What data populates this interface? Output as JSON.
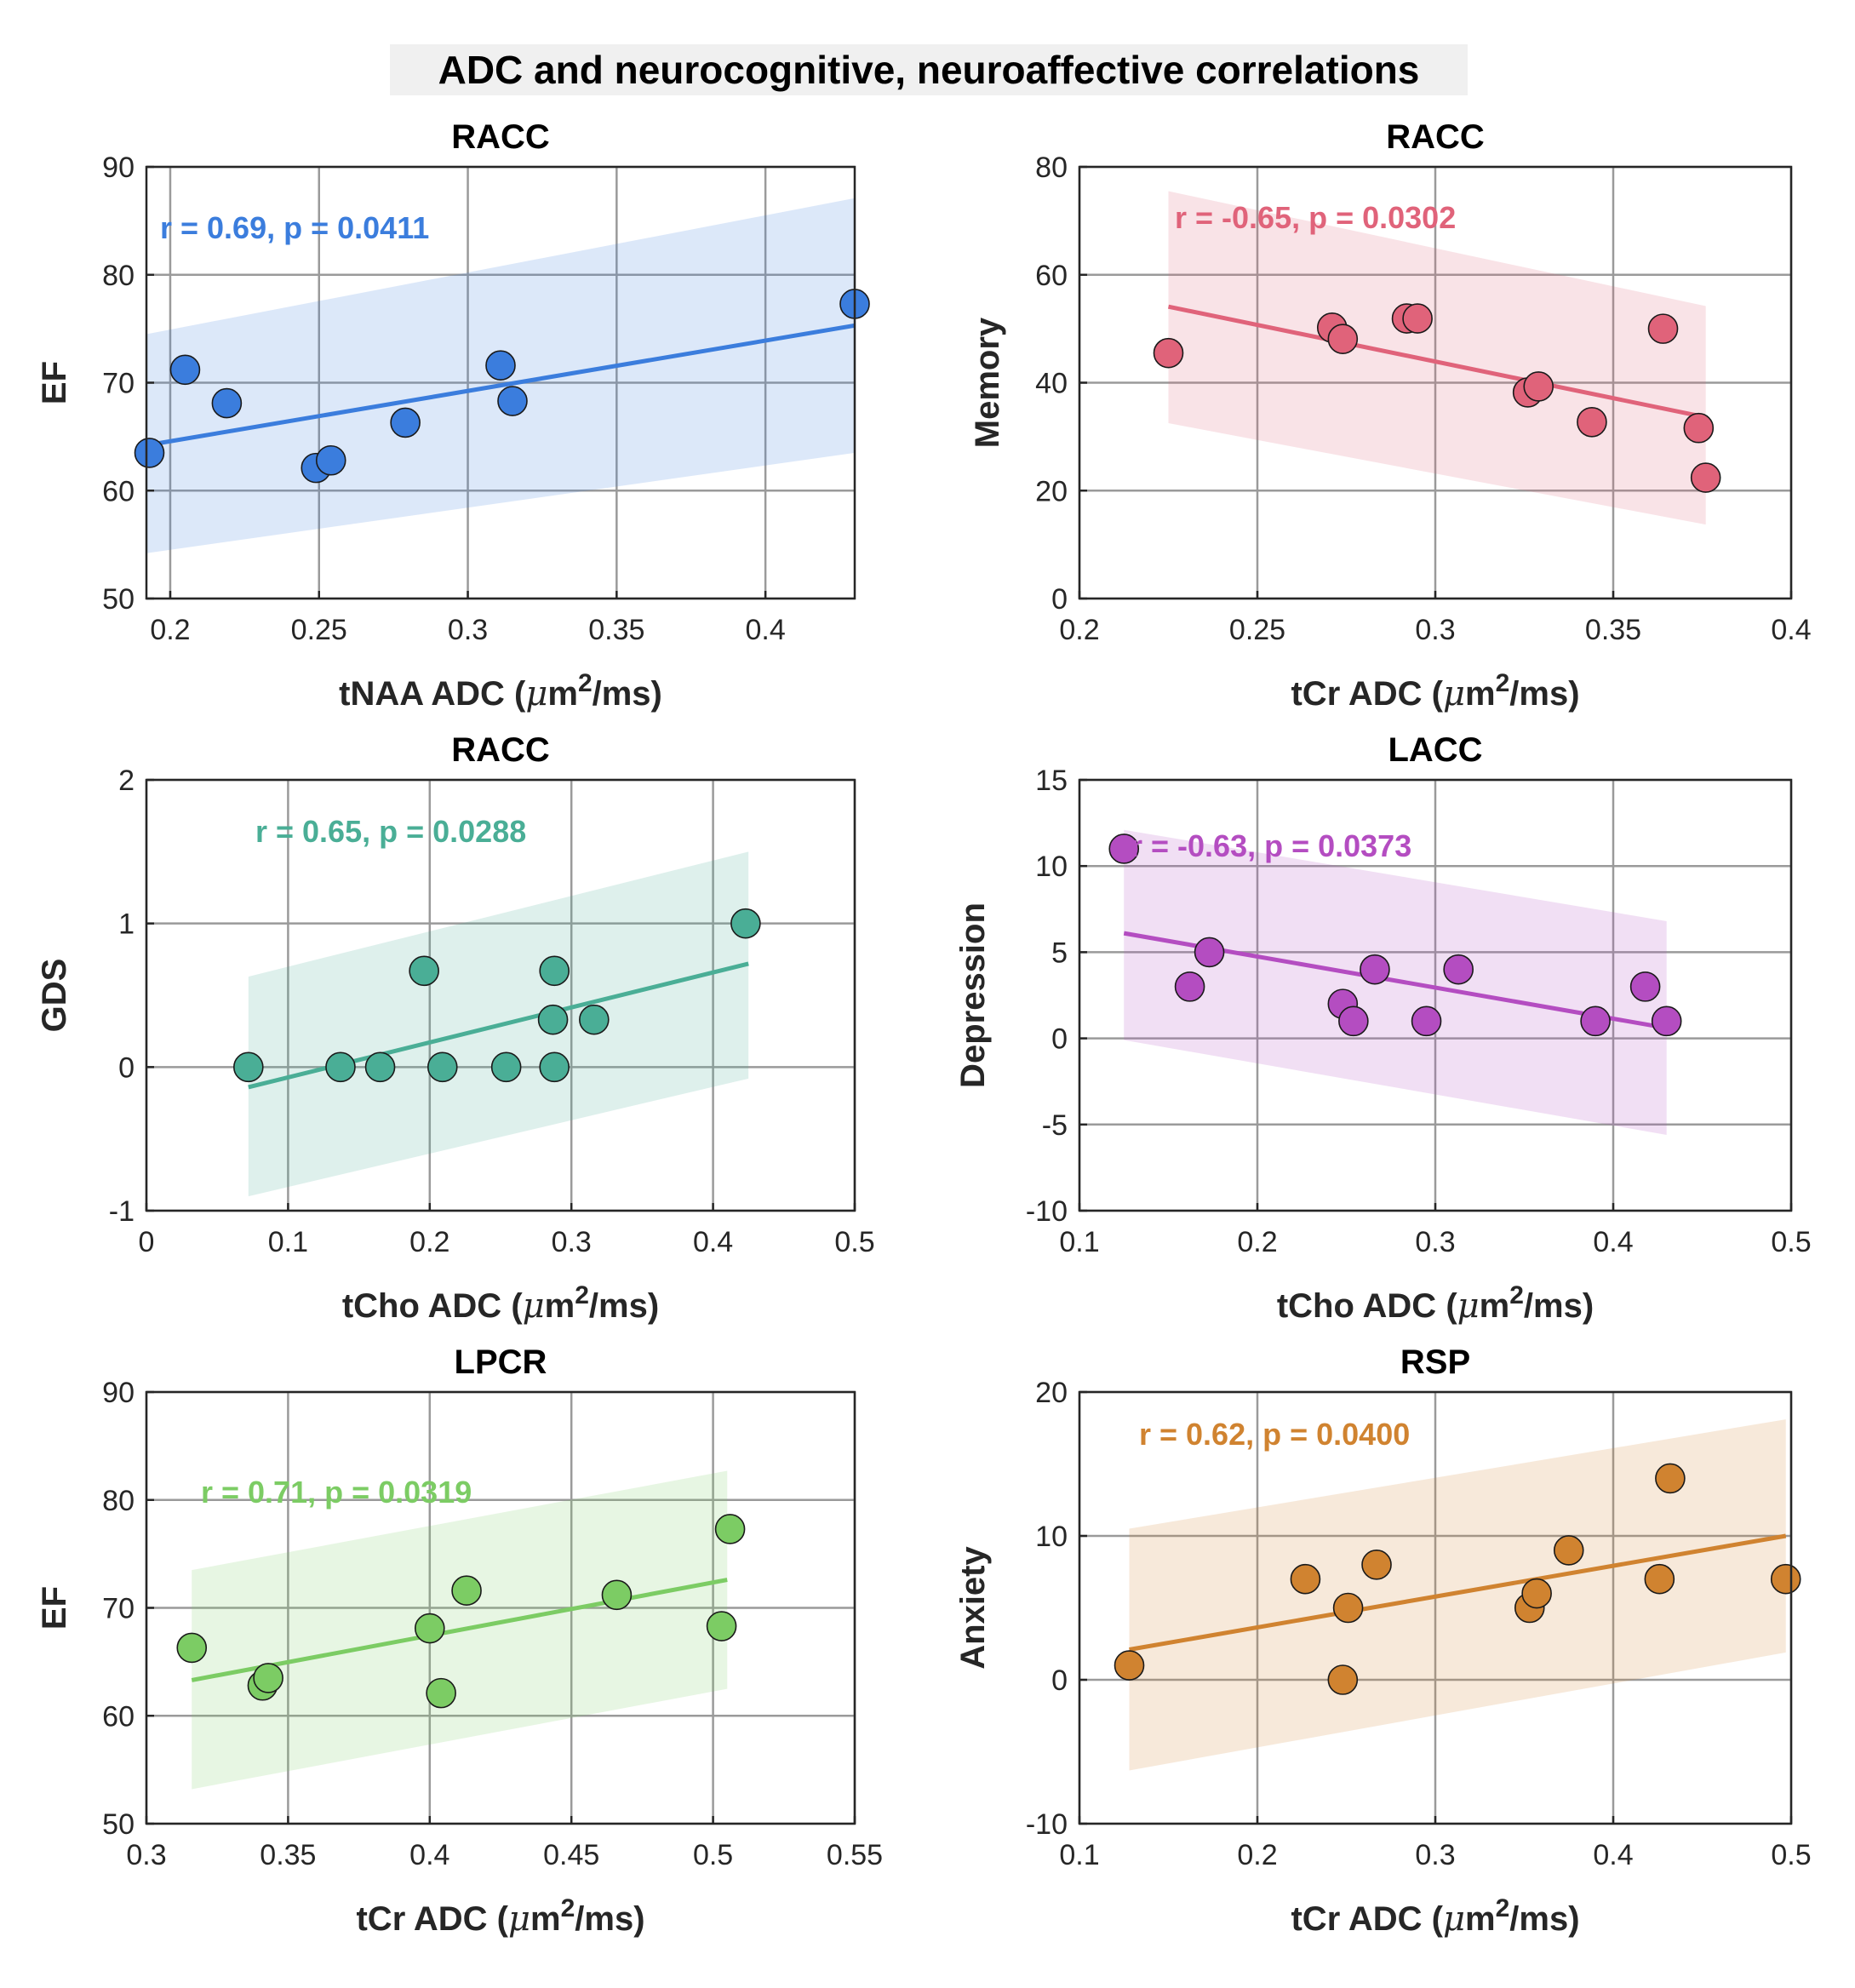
{
  "title": "ADC and neurocognitive, neuroaffective correlations",
  "chart_data": [
    {
      "type": "scatter",
      "title": "RACC",
      "xlabel": "tNAA ADC",
      "ylabel": "EF",
      "color": "#3b7ddd",
      "annotation": "r = 0.69, p = 0.0411",
      "xlim": [
        0.192,
        0.43
      ],
      "ylim": [
        50,
        90
      ],
      "xticks": [
        0.2,
        0.25,
        0.3,
        0.35,
        0.4
      ],
      "xtick_labels": [
        "0.2",
        "0.25",
        "0.3",
        "0.35",
        "0.4"
      ],
      "yticks": [
        50,
        60,
        70,
        80,
        90
      ],
      "ytick_labels": [
        "50",
        "60",
        "70",
        "80",
        "90"
      ],
      "points": {
        "x": [
          0.193,
          0.205,
          0.219,
          0.249,
          0.254,
          0.279,
          0.311,
          0.315,
          0.43
        ],
        "y": [
          63.5,
          71.2,
          68.1,
          62.1,
          62.8,
          66.3,
          71.6,
          68.3,
          77.3
        ]
      },
      "fit_line": {
        "x": [
          0.192,
          0.43
        ],
        "y": [
          64.2,
          75.3
        ]
      },
      "ci_band": {
        "x": [
          0.192,
          0.43
        ],
        "upper": [
          74.5,
          87.1
        ],
        "lower": [
          54.2,
          63.5
        ]
      }
    },
    {
      "type": "scatter",
      "title": "RACC",
      "xlabel": "tCr ADC",
      "ylabel": "Memory",
      "color": "#e0637a",
      "annotation": "r = -0.65, p = 0.0302",
      "xlim": [
        0.2,
        0.4
      ],
      "ylim": [
        0,
        80
      ],
      "xticks": [
        0.2,
        0.25,
        0.3,
        0.35,
        0.4
      ],
      "xtick_labels": [
        "0.2",
        "0.25",
        "0.3",
        "0.35",
        "0.4"
      ],
      "yticks": [
        0,
        20,
        40,
        60,
        80
      ],
      "ytick_labels": [
        "0",
        "20",
        "40",
        "60",
        "80"
      ],
      "points": {
        "x": [
          0.225,
          0.271,
          0.274,
          0.292,
          0.295,
          0.326,
          0.329,
          0.344,
          0.364,
          0.374,
          0.376
        ],
        "y": [
          45.5,
          50.2,
          48.1,
          51.9,
          51.9,
          38.2,
          39.3,
          32.7,
          50,
          31.6,
          22.4
        ]
      },
      "fit_line": {
        "x": [
          0.225,
          0.376
        ],
        "y": [
          54.1,
          33.6
        ]
      },
      "ci_band": {
        "x": [
          0.225,
          0.376
        ],
        "upper": [
          75.5,
          54.2
        ],
        "lower": [
          32.5,
          13.7
        ]
      }
    },
    {
      "type": "scatter",
      "title": "RACC",
      "xlabel": "tCho ADC",
      "ylabel": "GDS",
      "color": "#4aae96",
      "annotation": "r = 0.65, p = 0.0288",
      "xlim": [
        0,
        0.5
      ],
      "ylim": [
        -1,
        2
      ],
      "xticks": [
        0,
        0.1,
        0.2,
        0.3,
        0.4,
        0.5
      ],
      "xtick_labels": [
        "0",
        "0.1",
        "0.2",
        "0.3",
        "0.4",
        "0.5"
      ],
      "yticks": [
        -1,
        0,
        1,
        2
      ],
      "ytick_labels": [
        "-1",
        "0",
        "1",
        "2"
      ],
      "points": {
        "x": [
          0.072,
          0.137,
          0.165,
          0.196,
          0.209,
          0.254,
          0.287,
          0.288,
          0.288,
          0.316,
          0.423
        ],
        "y": [
          0,
          0,
          0,
          0.67,
          0,
          0,
          0.33,
          0.67,
          0,
          0.33,
          1
        ]
      },
      "fit_line": {
        "x": [
          0.072,
          0.425
        ],
        "y": [
          -0.14,
          0.72
        ]
      },
      "ci_band": {
        "x": [
          0.072,
          0.425
        ],
        "upper": [
          0.63,
          1.5
        ],
        "lower": [
          -0.9,
          -0.08
        ]
      }
    },
    {
      "type": "scatter",
      "title": "LACC",
      "xlabel": "tCho ADC",
      "ylabel": "Depression",
      "color": "#b44dc1",
      "annotation": "r = -0.63, p = 0.0373",
      "xlim": [
        0.1,
        0.5
      ],
      "ylim": [
        -10,
        15
      ],
      "xticks": [
        0.1,
        0.2,
        0.3,
        0.4,
        0.5
      ],
      "xtick_labels": [
        "0.1",
        "0.2",
        "0.3",
        "0.4",
        "0.5"
      ],
      "yticks": [
        -10,
        -5,
        0,
        5,
        10,
        15
      ],
      "ytick_labels": [
        "-10",
        "-5",
        "0",
        "5",
        "10",
        "15"
      ],
      "points": {
        "x": [
          0.125,
          0.162,
          0.173,
          0.248,
          0.254,
          0.266,
          0.295,
          0.313,
          0.39,
          0.418,
          0.43
        ],
        "y": [
          11,
          3,
          5,
          2,
          1,
          4,
          1,
          4,
          1,
          3,
          1
        ]
      },
      "fit_line": {
        "x": [
          0.125,
          0.43
        ],
        "y": [
          6.1,
          0.6
        ]
      },
      "ci_band": {
        "x": [
          0.125,
          0.43
        ],
        "upper": [
          12.1,
          6.8
        ],
        "lower": [
          -0.1,
          -5.6
        ]
      }
    },
    {
      "type": "scatter",
      "title": "LPCR",
      "xlabel": "tCr ADC",
      "ylabel": "EF",
      "color": "#7ccc64",
      "annotation": "r = 0.71, p = 0.0319",
      "xlim": [
        0.3,
        0.55
      ],
      "ylim": [
        50,
        90
      ],
      "xticks": [
        0.3,
        0.35,
        0.4,
        0.45,
        0.5,
        0.55
      ],
      "xtick_labels": [
        "0.3",
        "0.35",
        "0.4",
        "0.45",
        "0.5",
        "0.55"
      ],
      "yticks": [
        50,
        60,
        70,
        80,
        90
      ],
      "ytick_labels": [
        "50",
        "60",
        "70",
        "80",
        "90"
      ],
      "points": {
        "x": [
          0.316,
          0.341,
          0.343,
          0.4,
          0.404,
          0.413,
          0.466,
          0.503,
          0.506
        ],
        "y": [
          66.3,
          62.8,
          63.5,
          68.1,
          62.1,
          71.6,
          71.2,
          68.3,
          77.3
        ]
      },
      "fit_line": {
        "x": [
          0.316,
          0.505
        ],
        "y": [
          63.3,
          72.6
        ]
      },
      "ci_band": {
        "x": [
          0.316,
          0.505
        ],
        "upper": [
          73.5,
          82.7
        ],
        "lower": [
          53.2,
          62.5
        ]
      }
    },
    {
      "type": "scatter",
      "title": "RSP",
      "xlabel": "tCr ADC",
      "ylabel": "Anxiety",
      "color": "#d08330",
      "annotation": "r = 0.62, p = 0.0400",
      "xlim": [
        0.1,
        0.5
      ],
      "ylim": [
        -10,
        20
      ],
      "xticks": [
        0.1,
        0.2,
        0.3,
        0.4,
        0.5
      ],
      "xtick_labels": [
        "0.1",
        "0.2",
        "0.3",
        "0.4",
        "0.5"
      ],
      "yticks": [
        -10,
        0,
        10,
        20
      ],
      "ytick_labels": [
        "-10",
        "0",
        "10",
        "20"
      ],
      "points": {
        "x": [
          0.128,
          0.227,
          0.248,
          0.251,
          0.267,
          0.353,
          0.357,
          0.375,
          0.426,
          0.432,
          0.497
        ],
        "y": [
          1,
          7,
          0,
          5,
          8,
          5,
          6,
          9,
          7,
          14,
          7
        ]
      },
      "fit_line": {
        "x": [
          0.128,
          0.497
        ],
        "y": [
          2.1,
          10
        ]
      },
      "ci_band": {
        "x": [
          0.128,
          0.497
        ],
        "upper": [
          10.5,
          18.1
        ],
        "lower": [
          -6.3,
          1.9
        ]
      }
    }
  ],
  "units": {
    "prefix": "(",
    "mu": "μ",
    "m": "m",
    "exp": "2",
    "suffix": "/ms)"
  }
}
